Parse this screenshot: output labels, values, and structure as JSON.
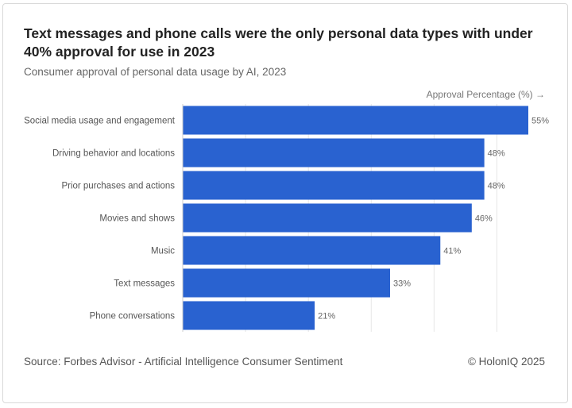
{
  "header": {
    "title": "Text messages and phone calls were the only personal data types with under 40% approval for use in 2023",
    "subtitle": "Consumer approval of personal data usage by AI, 2023",
    "axis_note": "Approval Percentage (%) →"
  },
  "footer": {
    "source": "Source: Forbes Advisor - Artificial Intelligence Consumer Sentiment",
    "credit": "© HolonIQ 2025"
  },
  "chart_data": {
    "type": "bar",
    "orientation": "horizontal",
    "categories": [
      "Social media usage and engagement",
      "Driving behavior and locations",
      "Prior purchases and actions",
      "Movies and shows",
      "Music",
      "Text messages",
      "Phone conversations"
    ],
    "values": [
      55,
      48,
      48,
      46,
      41,
      33,
      21
    ],
    "value_labels": [
      "55%",
      "48%",
      "48%",
      "46%",
      "41%",
      "33%",
      "21%"
    ],
    "xlim": [
      0,
      55
    ],
    "grid": true,
    "bar_color": "#2962d0",
    "grid_color": "#e6e6e6"
  }
}
